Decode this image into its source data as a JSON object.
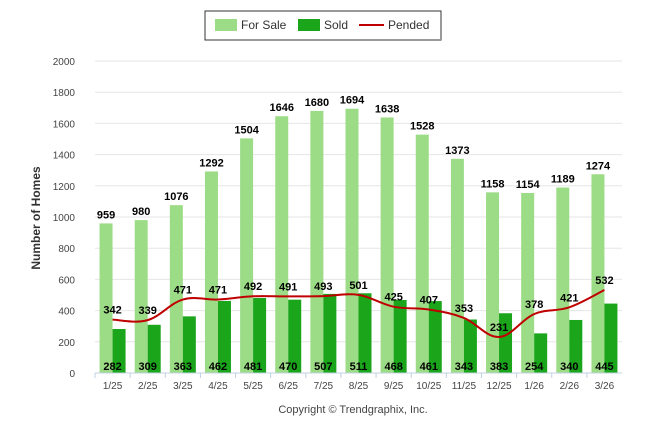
{
  "chart_data": {
    "type": "bar",
    "title": "",
    "xlabel": "",
    "ylabel": "Number of Homes",
    "ylim": [
      0,
      2000
    ],
    "yticks": [
      0,
      200,
      400,
      600,
      800,
      1000,
      1200,
      1400,
      1600,
      1800,
      2000
    ],
    "grid": true,
    "legend_position": "top-center",
    "categories": [
      "1/25",
      "2/25",
      "3/25",
      "4/25",
      "5/25",
      "6/25",
      "7/25",
      "8/25",
      "9/25",
      "10/25",
      "11/25",
      "12/25",
      "1/26",
      "2/26",
      "3/26"
    ],
    "series": [
      {
        "name": "For Sale",
        "type": "bar",
        "color": "#9ddc86",
        "values": [
          959,
          980,
          1076,
          1292,
          1504,
          1646,
          1680,
          1694,
          1638,
          1528,
          1373,
          1158,
          1154,
          1189,
          1274
        ]
      },
      {
        "name": "Sold",
        "type": "bar",
        "color": "#1aa51a",
        "values": [
          282,
          309,
          363,
          462,
          481,
          470,
          507,
          511,
          468,
          461,
          343,
          383,
          254,
          340,
          445
        ]
      },
      {
        "name": "Pended",
        "type": "line",
        "color": "#c00000",
        "values": [
          342,
          339,
          471,
          471,
          492,
          491,
          493,
          501,
          425,
          407,
          353,
          231,
          378,
          421,
          532
        ]
      }
    ],
    "footer": "Copyright © Trendgraphix, Inc."
  }
}
